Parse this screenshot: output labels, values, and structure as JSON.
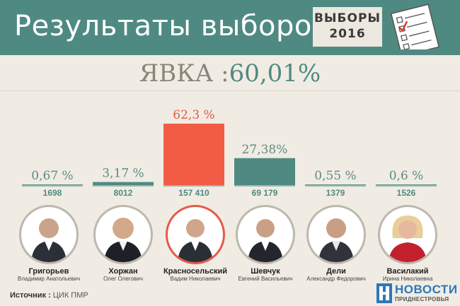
{
  "header": {
    "title": "Результаты выборов",
    "badge_line1": "ВЫБОРЫ",
    "badge_line2": "2016"
  },
  "turnout": {
    "label": "ЯВКА :",
    "value": "60,01%"
  },
  "chart_data": {
    "type": "bar",
    "categories": [
      "Григорьев",
      "Хоржан",
      "Красносельский",
      "Шевчук",
      "Дели",
      "Василакий"
    ],
    "values": [
      0.67,
      3.17,
      62.3,
      27.38,
      0.55,
      0.6
    ],
    "value_labels": [
      "0,67 %",
      "3,17 %",
      "62,3 %",
      "27,38%",
      "0,55 %",
      "0,6 %"
    ],
    "votes": [
      "1698",
      "8012",
      "157 410",
      "69 179",
      "1379",
      "1526"
    ],
    "ylim": [
      0,
      62.3
    ],
    "highlight_index": 2,
    "colors": {
      "bar": "#4f8a82",
      "highlight": "#f25c44",
      "label": "#5e8a84",
      "highlight_label": "#e55a48",
      "votes": "#4f8a82"
    }
  },
  "candidates": [
    {
      "surname": "Григорьев",
      "full": "Владимир Анатольевич"
    },
    {
      "surname": "Хоржан",
      "full": "Олег Олегович"
    },
    {
      "surname": "Красносельский",
      "full": "Вадим Николаевич"
    },
    {
      "surname": "Шевчук",
      "full": "Евгений Васильевич"
    },
    {
      "surname": "Дели",
      "full": "Александр Федорович"
    },
    {
      "surname": "Василакий",
      "full": "Ирина Николаевна"
    }
  ],
  "footer": {
    "source_label": "Источник :",
    "source_value": "ЦИК ПМР",
    "logo_top": "НОВОСТИ",
    "logo_bottom": "ПРИДНЕСТРОВЬЯ"
  }
}
